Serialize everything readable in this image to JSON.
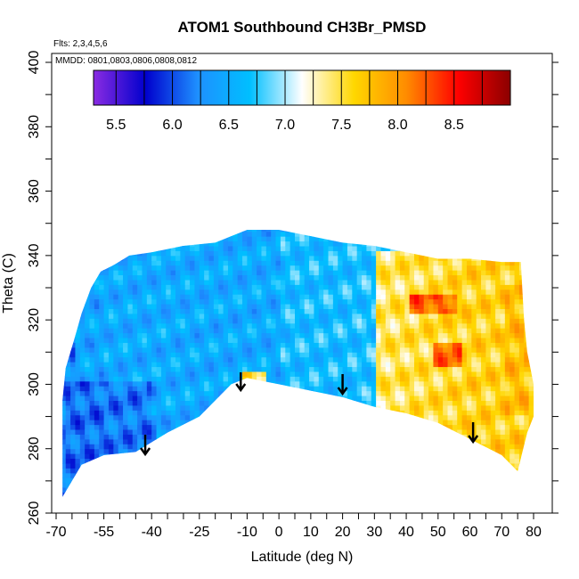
{
  "chart_data": {
    "type": "heatmap",
    "title": "ATOM1 Southbound CH3Br_PMSD",
    "subtitle_flights": "Flts: 2,3,4,5,6",
    "subtitle_dates": "MMDD: 0801,0803,0806,0808,0812",
    "xlabel": "Latitude (deg N)",
    "ylabel": "Theta (C)",
    "xlim": [
      -70,
      80
    ],
    "ylim": [
      260,
      402
    ],
    "x_ticks_labeled": [
      "-70",
      "-55",
      "-40",
      "-25",
      "-10",
      "0",
      "10",
      "20",
      "30",
      "40",
      "50",
      "60",
      "70",
      "80"
    ],
    "x_ticks_labeled_values": [
      -70,
      -55,
      -40,
      -25,
      -10,
      0,
      10,
      20,
      30,
      40,
      50,
      60,
      70,
      80
    ],
    "y_ticks_labeled": [
      "260",
      "280",
      "300",
      "320",
      "340",
      "360",
      "380",
      "400"
    ],
    "y_ticks_labeled_values": [
      260,
      280,
      300,
      320,
      340,
      360,
      380,
      400
    ],
    "colorbar": {
      "range": [
        5.3,
        9.0
      ],
      "tick_labels": [
        "5.5",
        "6.0",
        "6.5",
        "7.0",
        "7.5",
        "8.0",
        "8.5"
      ],
      "tick_values": [
        5.5,
        6.0,
        6.5,
        7.0,
        7.5,
        8.0,
        8.5
      ],
      "colors": [
        "#8a2be2",
        "#0000cd",
        "#1e90ff",
        "#00bfff",
        "#ffffff",
        "#ffd700",
        "#ff8c00",
        "#ff0000",
        "#8b0000"
      ]
    },
    "envelope_top": [
      [
        -68,
        295
      ],
      [
        -67,
        305
      ],
      [
        -64,
        315
      ],
      [
        -62,
        322
      ],
      [
        -59,
        330
      ],
      [
        -56,
        335
      ],
      [
        -52,
        337
      ],
      [
        -47,
        340
      ],
      [
        -40,
        341
      ],
      [
        -30,
        343
      ],
      [
        -20,
        344
      ],
      [
        -10,
        348
      ],
      [
        0,
        348
      ],
      [
        10,
        346
      ],
      [
        20,
        344
      ],
      [
        30,
        343
      ],
      [
        40,
        341
      ],
      [
        50,
        339
      ],
      [
        60,
        339
      ],
      [
        70,
        338
      ],
      [
        76,
        338
      ],
      [
        77,
        320
      ],
      [
        78,
        310
      ],
      [
        80,
        300
      ],
      [
        80,
        290
      ],
      [
        78,
        285
      ]
    ],
    "envelope_bottom": [
      [
        -68,
        265
      ],
      [
        -62,
        275
      ],
      [
        -55,
        278
      ],
      [
        -45,
        279
      ],
      [
        -35,
        285
      ],
      [
        -25,
        290
      ],
      [
        -15,
        300
      ],
      [
        -10,
        302
      ],
      [
        -5,
        301
      ],
      [
        0,
        300
      ],
      [
        10,
        298
      ],
      [
        20,
        296
      ],
      [
        30,
        293
      ],
      [
        40,
        291
      ],
      [
        50,
        288
      ],
      [
        60,
        283
      ],
      [
        70,
        278
      ],
      [
        75,
        273
      ]
    ],
    "regions": [
      {
        "x": [
          -68,
          -40
        ],
        "y": [
          265,
          300
        ],
        "value": 6.1
      },
      {
        "x": [
          -65,
          -35
        ],
        "y": [
          300,
          335
        ],
        "value": 6.5
      },
      {
        "x": [
          -40,
          0
        ],
        "y": [
          290,
          345
        ],
        "value": 6.5
      },
      {
        "x": [
          0,
          30
        ],
        "y": [
          296,
          346
        ],
        "value": 6.7
      },
      {
        "x": [
          30,
          80
        ],
        "y": [
          285,
          340
        ],
        "value": 7.6
      },
      {
        "x": [
          40,
          55
        ],
        "y": [
          322,
          327
        ],
        "value": 8.4
      },
      {
        "x": [
          48,
          56
        ],
        "y": [
          305,
          312
        ],
        "value": 8.3
      },
      {
        "x": [
          -12,
          -5
        ],
        "y": [
          299,
          303
        ],
        "value": 7.8
      },
      {
        "x": [
          70,
          78
        ],
        "y": [
          290,
          330
        ],
        "value": 7.8
      }
    ],
    "annotations": [
      {
        "type": "arrow-down",
        "x": -42
      },
      {
        "type": "arrow-down",
        "x": -12
      },
      {
        "type": "arrow-down",
        "x": 20
      },
      {
        "type": "arrow-down",
        "x": 61
      }
    ]
  }
}
